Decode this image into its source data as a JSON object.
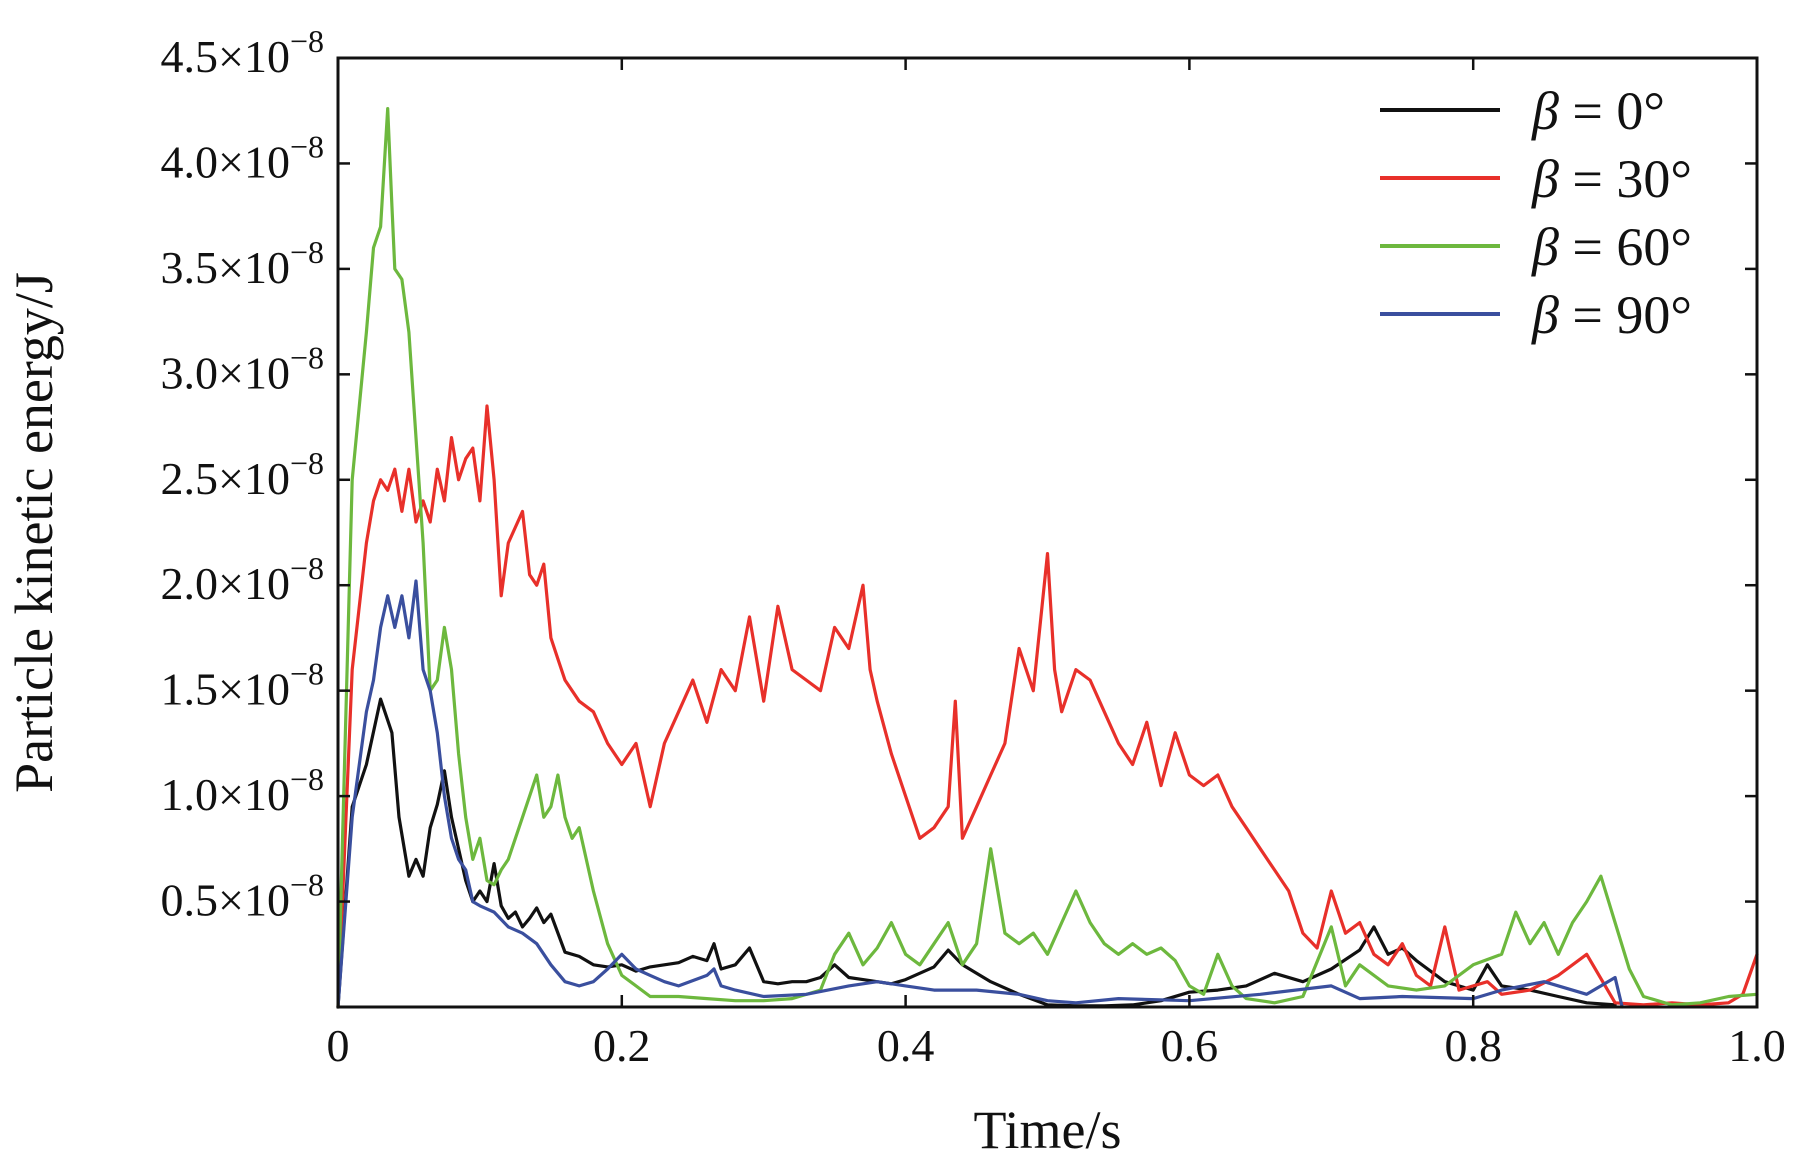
{
  "chart_data": {
    "type": "line",
    "title": "",
    "xlabel": "Time/s",
    "ylabel": "Particle kinetic energy/J",
    "xlim": [
      0,
      1.0
    ],
    "ylim": [
      0,
      4.5e-08
    ],
    "grid": false,
    "legend_position": "top-right",
    "x_ticks": [
      {
        "value": 0,
        "label": "0"
      },
      {
        "value": 0.2,
        "label": "0.2"
      },
      {
        "value": 0.4,
        "label": "0.4"
      },
      {
        "value": 0.6,
        "label": "0.6"
      },
      {
        "value": 0.8,
        "label": "0.8"
      },
      {
        "value": 1.0,
        "label": "1.0"
      }
    ],
    "y_ticks": [
      {
        "value": 5e-09,
        "mantissa": "0.5",
        "base": "×10",
        "exp": "−8"
      },
      {
        "value": 1e-08,
        "mantissa": "1.0",
        "base": "×10",
        "exp": "−8"
      },
      {
        "value": 1.5e-08,
        "mantissa": "1.5",
        "base": "×10",
        "exp": "−8"
      },
      {
        "value": 2e-08,
        "mantissa": "2.0",
        "base": "×10",
        "exp": "−8"
      },
      {
        "value": 2.5e-08,
        "mantissa": "2.5",
        "base": "×10",
        "exp": "−8"
      },
      {
        "value": 3e-08,
        "mantissa": "3.0",
        "base": "×10",
        "exp": "−8"
      },
      {
        "value": 3.5e-08,
        "mantissa": "3.5",
        "base": "×10",
        "exp": "−8"
      },
      {
        "value": 4e-08,
        "mantissa": "4.0",
        "base": "×10",
        "exp": "−8"
      },
      {
        "value": 4.5e-08,
        "mantissa": "4.5",
        "base": "×10",
        "exp": "−8"
      }
    ],
    "series": [
      {
        "name": "β = 0°",
        "symbol": "β",
        "rest": " = 0°",
        "color": "#111111",
        "x": [
          0,
          0.01,
          0.02,
          0.03,
          0.038,
          0.043,
          0.05,
          0.055,
          0.06,
          0.065,
          0.07,
          0.075,
          0.08,
          0.085,
          0.09,
          0.095,
          0.1,
          0.105,
          0.11,
          0.115,
          0.12,
          0.125,
          0.13,
          0.135,
          0.14,
          0.145,
          0.15,
          0.16,
          0.17,
          0.18,
          0.19,
          0.2,
          0.21,
          0.22,
          0.23,
          0.24,
          0.25,
          0.26,
          0.265,
          0.27,
          0.28,
          0.29,
          0.3,
          0.31,
          0.32,
          0.33,
          0.34,
          0.35,
          0.36,
          0.37,
          0.38,
          0.39,
          0.4,
          0.42,
          0.43,
          0.44,
          0.46,
          0.48,
          0.5,
          0.52,
          0.54,
          0.56,
          0.58,
          0.6,
          0.62,
          0.64,
          0.66,
          0.68,
          0.7,
          0.72,
          0.73,
          0.74,
          0.75,
          0.76,
          0.78,
          0.8,
          0.81,
          0.82,
          0.84,
          0.86,
          0.88,
          0.9
        ],
        "y": [
          0,
          9.5e-09,
          1.15e-08,
          1.46e-08,
          1.3e-08,
          9e-09,
          6.2e-09,
          7e-09,
          6.2e-09,
          8.5e-09,
          9.6e-09,
          1.12e-08,
          9e-09,
          7.5e-09,
          6e-09,
          5e-09,
          5.5e-09,
          5e-09,
          6.8e-09,
          4.8e-09,
          4.2e-09,
          4.5e-09,
          3.8e-09,
          4.2e-09,
          4.7e-09,
          4e-09,
          4.4e-09,
          2.6e-09,
          2.4e-09,
          2e-09,
          1.9e-09,
          2e-09,
          1.7e-09,
          1.9e-09,
          2e-09,
          2.1e-09,
          2.4e-09,
          2.2e-09,
          3e-09,
          1.8e-09,
          2e-09,
          2.8e-09,
          1.2e-09,
          1.1e-09,
          1.2e-09,
          1.2e-09,
          1.4e-09,
          2e-09,
          1.4e-09,
          1.3e-09,
          1.2e-09,
          1.1e-09,
          1.3e-09,
          1.9e-09,
          2.7e-09,
          2e-09,
          1.2e-09,
          6e-10,
          1e-10,
          5e-11,
          5e-11,
          1e-10,
          3e-10,
          7e-10,
          8e-10,
          1e-09,
          1.6e-09,
          1.2e-09,
          1.8e-09,
          2.7e-09,
          3.8e-09,
          2.5e-09,
          2.8e-09,
          2.2e-09,
          1.2e-09,
          8e-10,
          2e-09,
          1e-09,
          8e-10,
          5e-10,
          2e-10,
          1e-10
        ]
      },
      {
        "name": "β = 30°",
        "symbol": "β",
        "rest": " = 30°",
        "color": "#e8302a",
        "x": [
          0,
          0.01,
          0.02,
          0.025,
          0.03,
          0.035,
          0.04,
          0.045,
          0.05,
          0.055,
          0.06,
          0.065,
          0.07,
          0.075,
          0.08,
          0.085,
          0.09,
          0.095,
          0.1,
          0.105,
          0.11,
          0.115,
          0.12,
          0.13,
          0.135,
          0.14,
          0.145,
          0.15,
          0.155,
          0.16,
          0.17,
          0.18,
          0.19,
          0.2,
          0.21,
          0.22,
          0.225,
          0.23,
          0.24,
          0.25,
          0.26,
          0.27,
          0.28,
          0.29,
          0.3,
          0.31,
          0.32,
          0.33,
          0.34,
          0.35,
          0.36,
          0.37,
          0.375,
          0.38,
          0.39,
          0.4,
          0.41,
          0.42,
          0.43,
          0.435,
          0.44,
          0.45,
          0.46,
          0.47,
          0.48,
          0.49,
          0.5,
          0.505,
          0.51,
          0.52,
          0.53,
          0.54,
          0.55,
          0.56,
          0.57,
          0.58,
          0.59,
          0.6,
          0.61,
          0.62,
          0.63,
          0.64,
          0.65,
          0.66,
          0.67,
          0.68,
          0.69,
          0.7,
          0.71,
          0.72,
          0.73,
          0.74,
          0.75,
          0.76,
          0.77,
          0.78,
          0.79,
          0.8,
          0.81,
          0.82,
          0.84,
          0.86,
          0.88,
          0.9,
          0.92,
          0.94,
          0.96,
          0.98,
          0.99,
          1.0
        ],
        "y": [
          0,
          1.6e-08,
          2.2e-08,
          2.4e-08,
          2.5e-08,
          2.45e-08,
          2.55e-08,
          2.35e-08,
          2.55e-08,
          2.3e-08,
          2.4e-08,
          2.3e-08,
          2.55e-08,
          2.4e-08,
          2.7e-08,
          2.5e-08,
          2.6e-08,
          2.65e-08,
          2.4e-08,
          2.85e-08,
          2.5e-08,
          1.95e-08,
          2.2e-08,
          2.35e-08,
          2.05e-08,
          2e-08,
          2.1e-08,
          1.75e-08,
          1.65e-08,
          1.55e-08,
          1.45e-08,
          1.4e-08,
          1.25e-08,
          1.15e-08,
          1.25e-08,
          9.5e-09,
          1.1e-08,
          1.25e-08,
          1.4e-08,
          1.55e-08,
          1.35e-08,
          1.6e-08,
          1.5e-08,
          1.85e-08,
          1.45e-08,
          1.9e-08,
          1.6e-08,
          1.55e-08,
          1.5e-08,
          1.8e-08,
          1.7e-08,
          2e-08,
          1.6e-08,
          1.45e-08,
          1.2e-08,
          1e-08,
          8e-09,
          8.5e-09,
          9.5e-09,
          1.45e-08,
          8e-09,
          9.5e-09,
          1.1e-08,
          1.25e-08,
          1.7e-08,
          1.5e-08,
          2.15e-08,
          1.6e-08,
          1.4e-08,
          1.6e-08,
          1.55e-08,
          1.4e-08,
          1.25e-08,
          1.15e-08,
          1.35e-08,
          1.05e-08,
          1.3e-08,
          1.1e-08,
          1.05e-08,
          1.1e-08,
          9.5e-09,
          8.5e-09,
          7.5e-09,
          6.5e-09,
          5.5e-09,
          3.5e-09,
          2.8e-09,
          5.5e-09,
          3.5e-09,
          4e-09,
          2.5e-09,
          2e-09,
          3e-09,
          1.5e-09,
          1e-09,
          3.8e-09,
          8e-10,
          1e-09,
          1.2e-09,
          6e-10,
          8e-10,
          1.5e-09,
          2.5e-09,
          2e-10,
          1e-10,
          2e-10,
          1e-10,
          2e-10,
          6e-10,
          2.5e-09
        ]
      },
      {
        "name": "β = 60°",
        "symbol": "β",
        "rest": " = 60°",
        "color": "#6db83e",
        "x": [
          0,
          0.01,
          0.02,
          0.025,
          0.03,
          0.035,
          0.038,
          0.04,
          0.045,
          0.05,
          0.055,
          0.06,
          0.065,
          0.07,
          0.075,
          0.08,
          0.085,
          0.09,
          0.095,
          0.1,
          0.105,
          0.11,
          0.115,
          0.12,
          0.13,
          0.14,
          0.145,
          0.15,
          0.155,
          0.16,
          0.165,
          0.17,
          0.18,
          0.19,
          0.2,
          0.21,
          0.22,
          0.24,
          0.26,
          0.28,
          0.3,
          0.32,
          0.34,
          0.35,
          0.36,
          0.37,
          0.38,
          0.39,
          0.4,
          0.41,
          0.42,
          0.43,
          0.44,
          0.45,
          0.46,
          0.47,
          0.48,
          0.49,
          0.5,
          0.51,
          0.52,
          0.53,
          0.54,
          0.55,
          0.56,
          0.57,
          0.58,
          0.59,
          0.6,
          0.61,
          0.62,
          0.63,
          0.64,
          0.66,
          0.68,
          0.7,
          0.71,
          0.72,
          0.74,
          0.76,
          0.78,
          0.8,
          0.82,
          0.83,
          0.84,
          0.85,
          0.86,
          0.87,
          0.88,
          0.89,
          0.9,
          0.91,
          0.92,
          0.94,
          0.96,
          0.98,
          1.0
        ],
        "y": [
          0,
          2.5e-08,
          3.2e-08,
          3.6e-08,
          3.7e-08,
          4.26e-08,
          3.8e-08,
          3.5e-08,
          3.45e-08,
          3.2e-08,
          2.7e-08,
          2.2e-08,
          1.5e-08,
          1.55e-08,
          1.8e-08,
          1.6e-08,
          1.2e-08,
          9e-09,
          7e-09,
          8e-09,
          6e-09,
          5.8e-09,
          6.5e-09,
          7e-09,
          9e-09,
          1.1e-08,
          9e-09,
          9.5e-09,
          1.1e-08,
          9e-09,
          8e-09,
          8.5e-09,
          5.5e-09,
          3e-09,
          1.5e-09,
          1e-09,
          5e-10,
          5e-10,
          4e-10,
          3e-10,
          3e-10,
          4e-10,
          8e-10,
          2.5e-09,
          3.5e-09,
          2e-09,
          2.8e-09,
          4e-09,
          2.5e-09,
          2e-09,
          3e-09,
          4e-09,
          2e-09,
          3e-09,
          7.5e-09,
          3.5e-09,
          3e-09,
          3.5e-09,
          2.5e-09,
          4e-09,
          5.5e-09,
          4e-09,
          3e-09,
          2.5e-09,
          3e-09,
          2.5e-09,
          2.8e-09,
          2.2e-09,
          1e-09,
          6e-10,
          2.5e-09,
          1e-09,
          4e-10,
          2e-10,
          5e-10,
          3.8e-09,
          1e-09,
          2e-09,
          1e-09,
          8e-10,
          1e-09,
          2e-09,
          2.5e-09,
          4.5e-09,
          3e-09,
          4e-09,
          2.5e-09,
          4e-09,
          5e-09,
          6.2e-09,
          4e-09,
          1.8e-09,
          5e-10,
          1e-10,
          2e-10,
          5e-10,
          6e-10
        ]
      },
      {
        "name": "β = 90°",
        "symbol": "β",
        "rest": " = 90°",
        "color": "#3a4f9e",
        "x": [
          0,
          0.01,
          0.02,
          0.025,
          0.03,
          0.035,
          0.04,
          0.045,
          0.05,
          0.055,
          0.06,
          0.065,
          0.07,
          0.075,
          0.08,
          0.085,
          0.09,
          0.095,
          0.1,
          0.11,
          0.12,
          0.13,
          0.14,
          0.15,
          0.16,
          0.17,
          0.18,
          0.19,
          0.2,
          0.21,
          0.22,
          0.23,
          0.24,
          0.26,
          0.265,
          0.27,
          0.28,
          0.3,
          0.33,
          0.36,
          0.38,
          0.4,
          0.42,
          0.45,
          0.48,
          0.5,
          0.52,
          0.55,
          0.6,
          0.65,
          0.7,
          0.72,
          0.75,
          0.8,
          0.82,
          0.85,
          0.88,
          0.9,
          0.905
        ],
        "y": [
          0,
          9e-09,
          1.4e-08,
          1.55e-08,
          1.8e-08,
          1.95e-08,
          1.8e-08,
          1.95e-08,
          1.75e-08,
          2.02e-08,
          1.6e-08,
          1.5e-08,
          1.3e-08,
          1e-08,
          8e-09,
          7e-09,
          6.5e-09,
          5e-09,
          4.8e-09,
          4.5e-09,
          3.8e-09,
          3.5e-09,
          3e-09,
          2e-09,
          1.2e-09,
          1e-09,
          1.2e-09,
          1.8e-09,
          2.5e-09,
          1.8e-09,
          1.5e-09,
          1.2e-09,
          1e-09,
          1.5e-09,
          1.8e-09,
          1e-09,
          8e-10,
          5e-10,
          6e-10,
          1e-09,
          1.2e-09,
          1e-09,
          8e-10,
          8e-10,
          6e-10,
          3e-10,
          2e-10,
          4e-10,
          3e-10,
          6e-10,
          1e-09,
          4e-10,
          5e-10,
          4e-10,
          8e-10,
          1.2e-09,
          6e-10,
          1.4e-09,
          0.0
        ]
      }
    ]
  }
}
